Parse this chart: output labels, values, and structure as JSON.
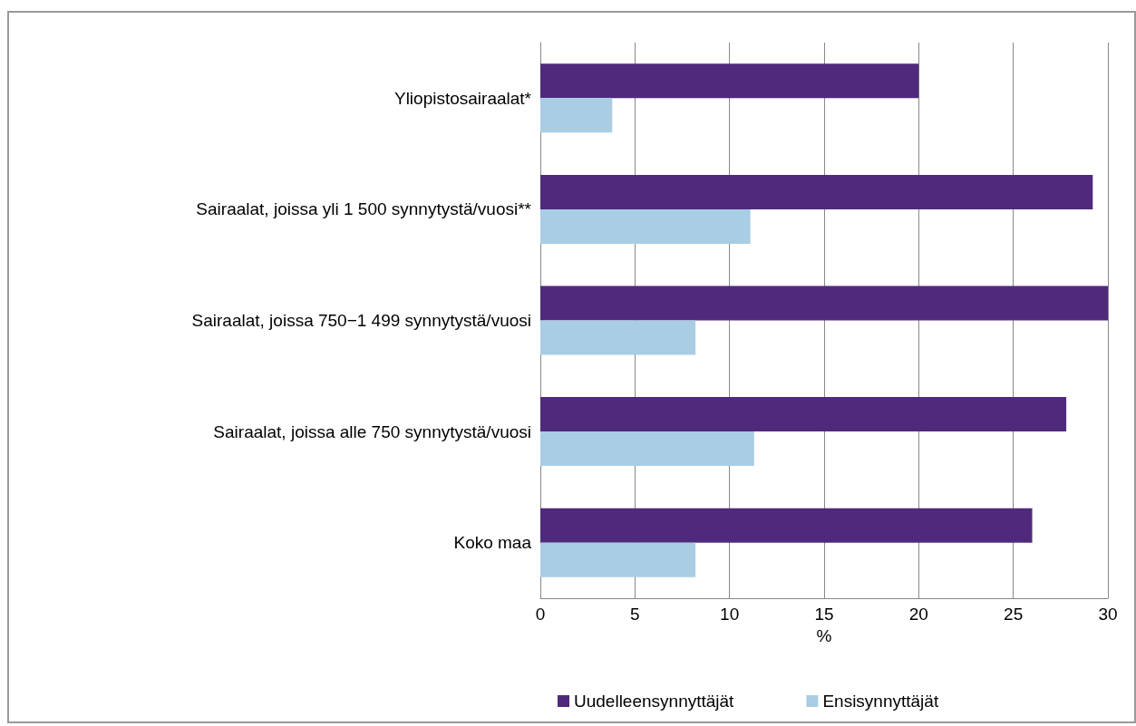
{
  "chart_data": {
    "type": "bar",
    "orientation": "horizontal",
    "xlabel": "%",
    "categories": [
      "Yliopistosairaalat*",
      "Sairaalat, joissa yli 1 500 synnytystä/vuosi**",
      "Sairaalat, joissa 750−1 499 synnytystä/vuosi",
      "Sairaalat, joissa alle 750 synnytystä/vuosi",
      "Koko maa"
    ],
    "series": [
      {
        "name": "Uudelleensynnyttäjät",
        "color": "#4f2a7c",
        "values": [
          20.0,
          29.2,
          30.0,
          27.8,
          26.0
        ]
      },
      {
        "name": "Ensisynnyttäjät",
        "color": "#a9cde3",
        "values": [
          3.8,
          11.1,
          8.2,
          11.3,
          8.2
        ]
      }
    ],
    "xlim": [
      0,
      30
    ],
    "xticks": [
      0,
      5,
      10,
      15,
      20,
      25,
      30
    ],
    "grid": "x",
    "legend": "bottom"
  }
}
